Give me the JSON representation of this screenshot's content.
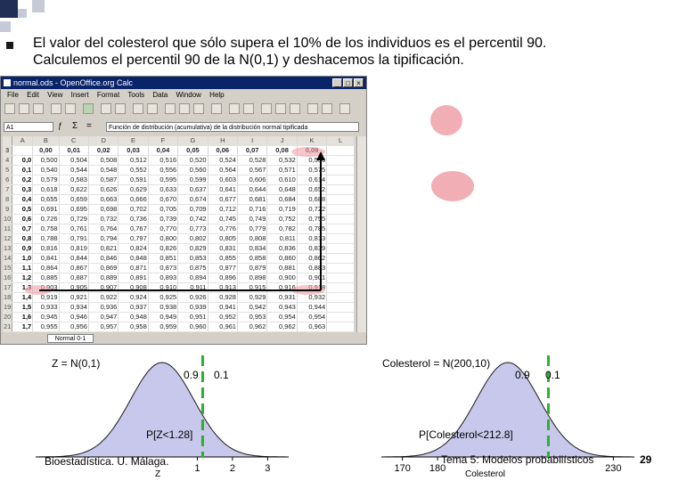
{
  "slide": {
    "bullet_line1": "El valor del colesterol que sólo supera el 10% de los individuos es el percentil 90.",
    "bullet_line2": "Calculemos el percentil 90 de la N(0,1) y deshacemos la tipificación.",
    "footer_left": "Bioestadística. U. Málaga.",
    "footer_center": "Tema 5: Modelos probabilísticos",
    "page_number": "29"
  },
  "window": {
    "title": "normal.ods - OpenOffice.org Calc",
    "menu": [
      "File",
      "Edit",
      "View",
      "Insert",
      "Format",
      "Tools",
      "Data",
      "Window",
      "Help"
    ],
    "name_box": "A1",
    "formula": "Función de distribución (acumulativa) de la distribución normal tipificada",
    "sheet_tab": "Normal 0-1",
    "columns": [
      "A",
      "B",
      "C",
      "D",
      "E",
      "F",
      "G",
      "H",
      "I",
      "J",
      "K",
      "L"
    ],
    "header_row": [
      "",
      "0,00",
      "0,01",
      "0,02",
      "0,03",
      "0,04",
      "0,05",
      "0,06",
      "0,07",
      "0,08",
      "0,09"
    ],
    "row_numbers": [
      "3",
      "4",
      "5",
      "6",
      "7",
      "8",
      "9",
      "10",
      "11",
      "12",
      "13",
      "14",
      "15",
      "16",
      "17",
      "18",
      "19",
      "20",
      "21"
    ],
    "rows": [
      [
        "0,0",
        "0,500",
        "0,504",
        "0,508",
        "0,512",
        "0,516",
        "0,520",
        "0,524",
        "0,528",
        "0,532",
        "0,536"
      ],
      [
        "0,1",
        "0,540",
        "0,544",
        "0,548",
        "0,552",
        "0,556",
        "0,560",
        "0,564",
        "0,567",
        "0,571",
        "0,575"
      ],
      [
        "0,2",
        "0,579",
        "0,583",
        "0,587",
        "0,591",
        "0,595",
        "0,599",
        "0,603",
        "0,606",
        "0,610",
        "0,614"
      ],
      [
        "0,3",
        "0,618",
        "0,622",
        "0,626",
        "0,629",
        "0,633",
        "0,637",
        "0,641",
        "0,644",
        "0,648",
        "0,652"
      ],
      [
        "0,4",
        "0,655",
        "0,659",
        "0,663",
        "0,666",
        "0,670",
        "0,674",
        "0,677",
        "0,681",
        "0,684",
        "0,688"
      ],
      [
        "0,5",
        "0,691",
        "0,695",
        "0,698",
        "0,702",
        "0,705",
        "0,709",
        "0,712",
        "0,716",
        "0,719",
        "0,722"
      ],
      [
        "0,6",
        "0,726",
        "0,729",
        "0,732",
        "0,736",
        "0,739",
        "0,742",
        "0,745",
        "0,749",
        "0,752",
        "0,755"
      ],
      [
        "0,7",
        "0,758",
        "0,761",
        "0,764",
        "0,767",
        "0,770",
        "0,773",
        "0,776",
        "0,779",
        "0,782",
        "0,785"
      ],
      [
        "0,8",
        "0,788",
        "0,791",
        "0,794",
        "0,797",
        "0,800",
        "0,802",
        "0,805",
        "0,808",
        "0,811",
        "0,813"
      ],
      [
        "0,9",
        "0,816",
        "0,819",
        "0,821",
        "0,824",
        "0,826",
        "0,829",
        "0,831",
        "0,834",
        "0,836",
        "0,839"
      ],
      [
        "1,0",
        "0,841",
        "0,844",
        "0,846",
        "0,848",
        "0,851",
        "0,853",
        "0,855",
        "0,858",
        "0,860",
        "0,862"
      ],
      [
        "1,1",
        "0,864",
        "0,867",
        "0,869",
        "0,871",
        "0,873",
        "0,875",
        "0,877",
        "0,879",
        "0,881",
        "0,883"
      ],
      [
        "1,2",
        "0,885",
        "0,887",
        "0,889",
        "0,891",
        "0,893",
        "0,894",
        "0,896",
        "0,898",
        "0,900",
        "0,901"
      ],
      [
        "1,3",
        "0,903",
        "0,905",
        "0,907",
        "0,908",
        "0,910",
        "0,911",
        "0,913",
        "0,915",
        "0,916",
        "0,918"
      ],
      [
        "1,4",
        "0,919",
        "0,921",
        "0,922",
        "0,924",
        "0,925",
        "0,926",
        "0,928",
        "0,929",
        "0,931",
        "0,932"
      ],
      [
        "1,5",
        "0,933",
        "0,934",
        "0,936",
        "0,937",
        "0,938",
        "0,939",
        "0,941",
        "0,942",
        "0,943",
        "0,944"
      ],
      [
        "1,6",
        "0,945",
        "0,946",
        "0,947",
        "0,948",
        "0,949",
        "0,951",
        "0,952",
        "0,953",
        "0,954",
        "0,954"
      ],
      [
        "1,7",
        "0,955",
        "0,956",
        "0,957",
        "0,958",
        "0,959",
        "0,960",
        "0,961",
        "0,962",
        "0,962",
        "0,963"
      ]
    ]
  },
  "chart_data": [
    {
      "type": "area",
      "title": "Z = N(0,1)",
      "xlabel": "Z",
      "x_ticks": [
        "1",
        "2",
        "3"
      ],
      "cut": 1.28,
      "left_area_label": "0.9",
      "right_area_label": "0.1",
      "annotation": "P[Z<1.28]",
      "colors": {
        "fill": "#c8c8ec",
        "curve": "#1a1a1a",
        "cut_line": "#2bb02b",
        "tail_label": "#808080"
      }
    },
    {
      "type": "area",
      "title": "Colesterol = N(200,10)",
      "xlabel": "Colesterol",
      "x_ticks": [
        "170",
        "180",
        "230"
      ],
      "cut": 212.8,
      "left_area_label": "0.9",
      "right_area_label": "0.1",
      "annotation": "P[Colesterol<212.8]",
      "colors": {
        "fill": "#c8c8ec",
        "curve": "#1a1a1a",
        "cut_line": "#2bb02b",
        "tail_label": "#808080"
      }
    }
  ]
}
